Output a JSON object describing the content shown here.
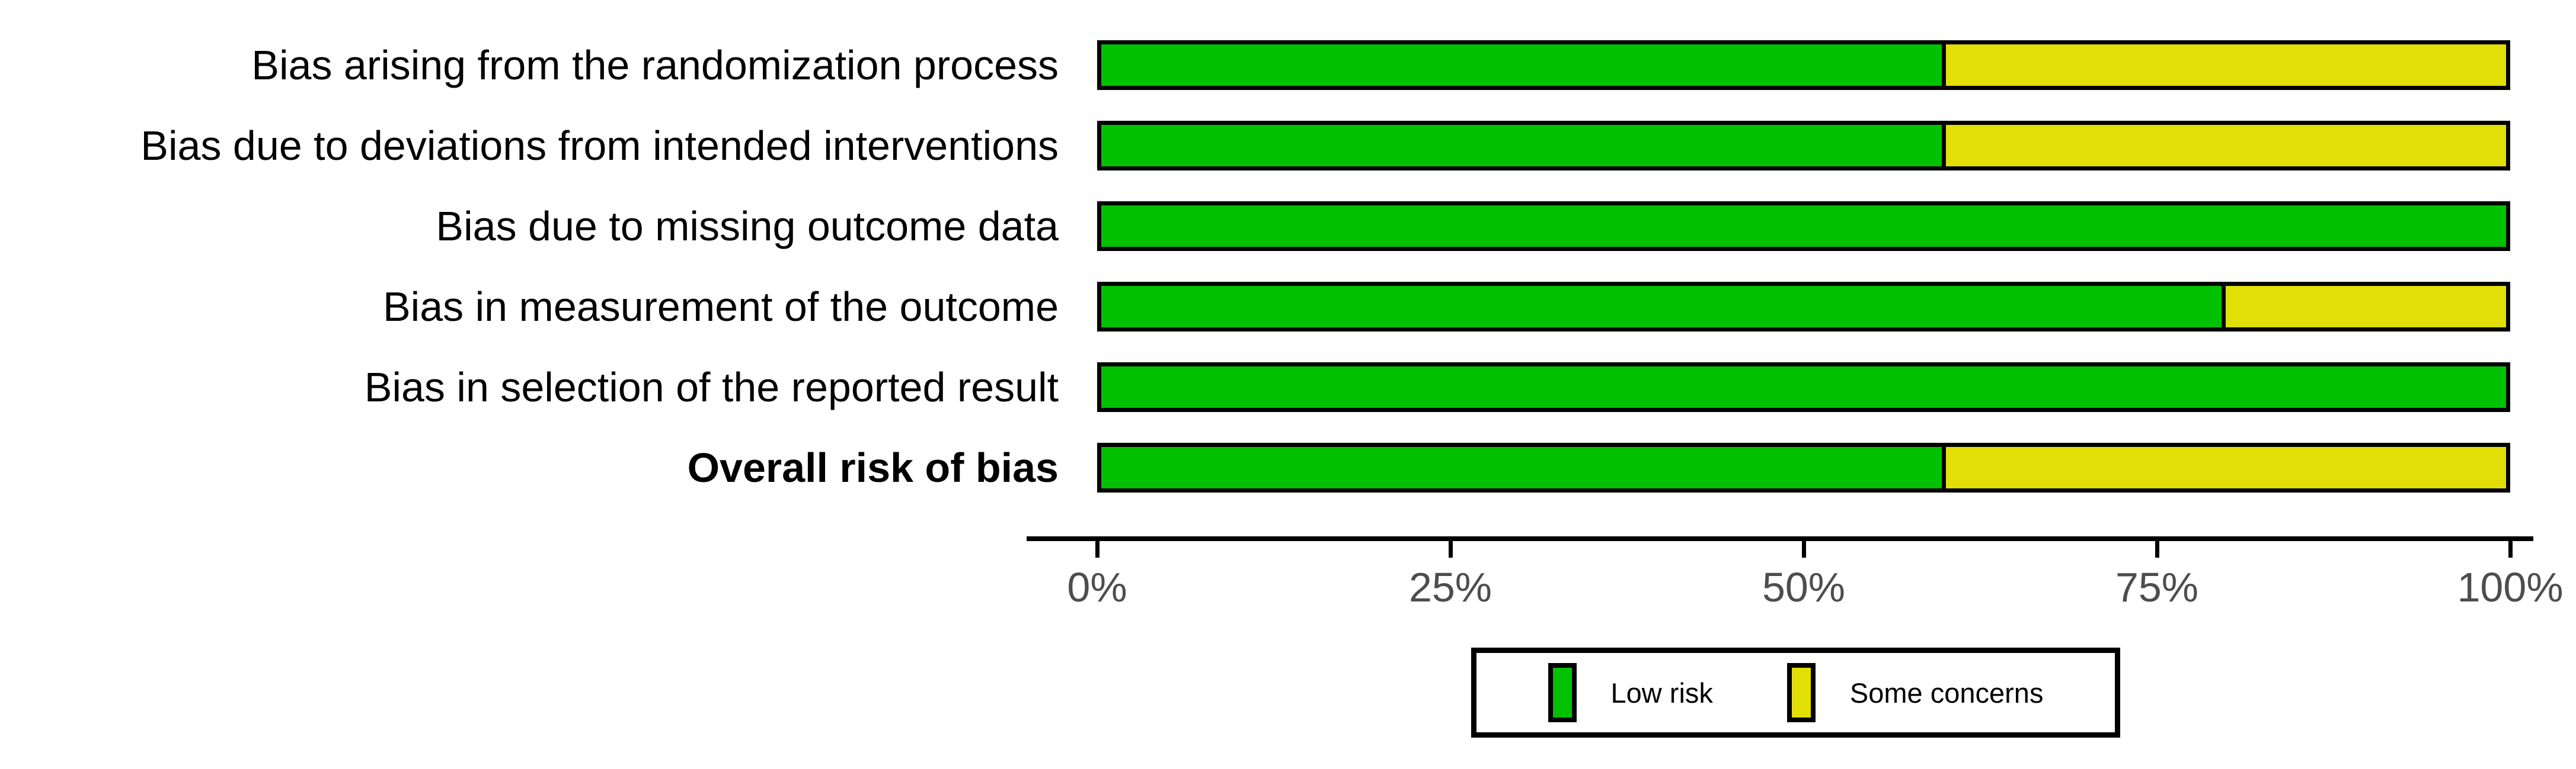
{
  "figure": {
    "background": "#FFFFFF"
  },
  "chart_data": {
    "type": "bar",
    "orientation": "horizontal",
    "stacked": true,
    "unit": "percent",
    "title": "",
    "xlabel": "",
    "ylabel": "",
    "xlim": [
      0,
      100
    ],
    "grid": false,
    "categories": [
      "Bias arising from the randomization process",
      "Bias due to deviations from intended interventions",
      "Bias due to missing outcome data",
      "Bias in measurement of the outcome",
      "Bias in selection of the reported result",
      "Overall risk of bias"
    ],
    "categories_bold": [
      false,
      false,
      false,
      false,
      false,
      true
    ],
    "series": [
      {
        "name": "Low risk",
        "color": "#02C100",
        "values": [
          60,
          60,
          100,
          80,
          100,
          60
        ]
      },
      {
        "name": "Some concerns",
        "color": "#E2DF07",
        "values": [
          40,
          40,
          0,
          20,
          0,
          40
        ]
      }
    ],
    "x_ticks": [
      "0%",
      "25%",
      "50%",
      "75%",
      "100%"
    ],
    "x_tick_values": [
      0,
      25,
      50,
      75,
      100
    ],
    "axis_text_color": "#4D4D4D",
    "axis_line_color": "#000000",
    "bar_border_color": "#000000",
    "legend": {
      "position": "bottom",
      "entries": [
        {
          "label": "Low risk",
          "color": "#02C100"
        },
        {
          "label": "Some concerns",
          "color": "#E2DF07"
        }
      ]
    }
  }
}
